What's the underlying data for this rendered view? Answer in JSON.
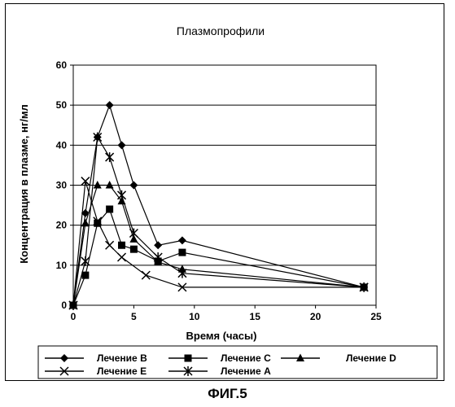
{
  "chart_data": {
    "type": "line",
    "title": "Плазмопрофили",
    "xlabel": "Время (часы)",
    "ylabel": "Концентрация в плазме, нг/мл",
    "xlim": [
      0,
      25
    ],
    "ylim": [
      0,
      60
    ],
    "xticks": [
      0,
      5,
      10,
      15,
      20,
      25
    ],
    "yticks": [
      0,
      10,
      20,
      30,
      40,
      50,
      60
    ],
    "grid": "horizontal",
    "legend_position": "bottom",
    "series": [
      {
        "name": "Лечение B",
        "marker": "diamond",
        "x": [
          0,
          1,
          2,
          3,
          4,
          5,
          7,
          9,
          24
        ],
        "y": [
          0,
          23,
          42,
          50,
          40,
          30,
          15,
          16.2,
          4.5
        ]
      },
      {
        "name": "Лечение C",
        "marker": "square",
        "x": [
          0,
          1,
          2,
          3,
          4,
          5,
          7,
          9,
          24
        ],
        "y": [
          0,
          7.5,
          20.5,
          24,
          15,
          14,
          11,
          13.2,
          4.5
        ]
      },
      {
        "name": "Лечение D",
        "marker": "triangle",
        "x": [
          0,
          1,
          2,
          3,
          4,
          5,
          7,
          9,
          24
        ],
        "y": [
          0,
          20.5,
          30,
          30,
          26,
          16.5,
          10.8,
          9,
          4.5
        ]
      },
      {
        "name": "Лечение E",
        "marker": "x",
        "x": [
          0,
          1,
          2,
          3,
          4,
          6,
          9,
          24
        ],
        "y": [
          0,
          31,
          21,
          15,
          12,
          7.5,
          4.5,
          4.5
        ]
      },
      {
        "name": "Лечение A",
        "marker": "asterisk",
        "x": [
          0,
          1,
          2,
          3,
          4,
          5,
          7,
          9,
          24
        ],
        "y": [
          0,
          11,
          42,
          37,
          27.5,
          18,
          12,
          8,
          4.5
        ]
      }
    ]
  },
  "caption": "ФИГ.5"
}
